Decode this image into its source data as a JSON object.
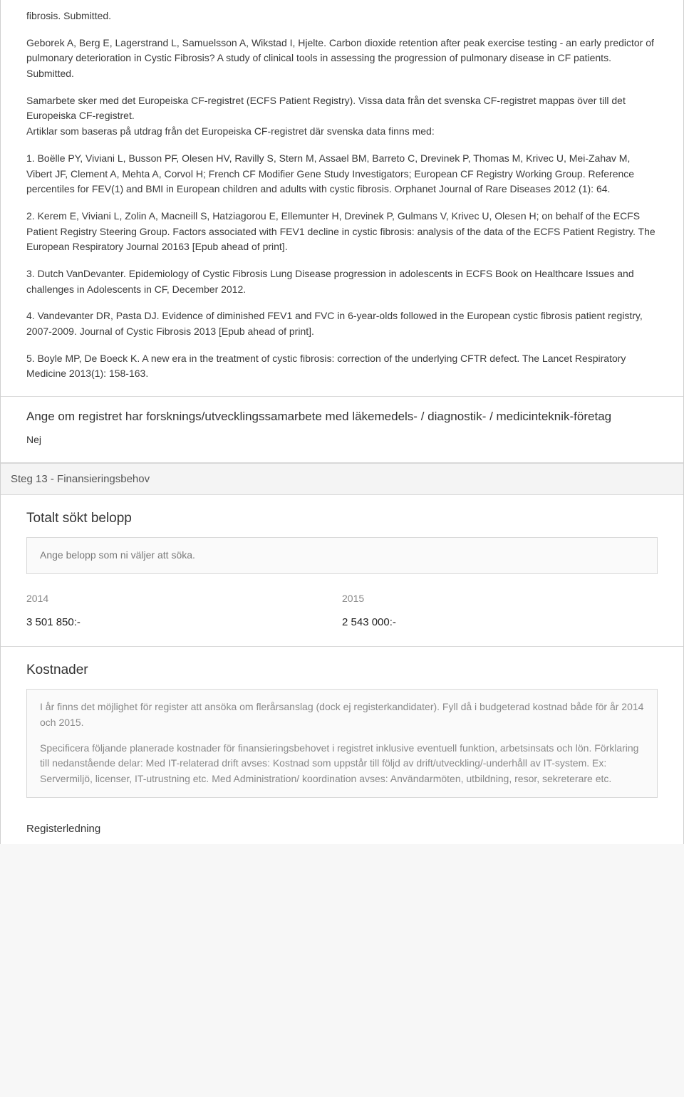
{
  "colors": {
    "background": "#f7f7f7",
    "card": "#ffffff",
    "border": "#d8d8d8",
    "text": "#333333",
    "muted": "#888888",
    "infobox_bg": "#fafafa"
  },
  "typography": {
    "body_pt": 14,
    "heading_pt": 19,
    "subheading_pt": 17,
    "step_pt": 15,
    "family": "Arial"
  },
  "top_text": {
    "line0": "fibrosis. Submitted.",
    "para1": "Geborek A, Berg E, Lagerstrand L, Samuelsson A, Wikstad I, Hjelte. Carbon dioxide retention after peak exercise testing - an early predictor of pulmonary deterioration in Cystic Fibrosis? A study of clinical tools in assessing the progression of pulmonary disease in CF patients. Submitted.",
    "para2": "Samarbete sker med det Europeiska CF-registret (ECFS Patient Registry). Vissa data från det svenska CF-registret mappas över till det Europeiska CF-registret.\nArtiklar som baseras på utdrag från det Europeiska CF-registret där svenska data finns med:",
    "item1": "1. Boëlle PY, Viviani L, Busson PF, Olesen HV, Ravilly S, Stern M, Assael BM, Barreto C, Drevinek P, Thomas M, Krivec U, Mei-Zahav M, Vibert JF, Clement A, Mehta A, Corvol H; French CF Modifier Gene Study Investigators; European CF Registry Working Group. Reference percentiles for FEV(1) and BMI in European children and adults with cystic fibrosis. Orphanet Journal of Rare Diseases 2012 (1): 64.",
    "item2": "2. Kerem E, Viviani L, Zolin A, Macneill S, Hatziagorou E, Ellemunter H, Drevinek P, Gulmans V, Krivec U, Olesen H; on behalf of the ECFS Patient Registry Steering Group. Factors associated with FEV1 decline in cystic fibrosis: analysis of the data of the ECFS Patient Registry. The European Respiratory Journal 20163 [Epub ahead of print].",
    "item3": "3. Dutch VanDevanter. Epidemiology of Cystic Fibrosis Lung Disease progression in adolescents in ECFS Book on Healthcare Issues and challenges in Adolescents in CF, December 2012.",
    "item4": "4. Vandevanter DR, Pasta DJ. Evidence of diminished FEV1 and FVC in 6-year-olds followed in the European cystic fibrosis patient registry, 2007-2009. Journal of Cystic Fibrosis 2013 [Epub ahead of print].",
    "item5": "5. Boyle MP, De Boeck K. A new era in the treatment of cystic fibrosis: correction of the underlying CFTR defect. The Lancet Respiratory Medicine 2013(1): 158-163."
  },
  "question2": {
    "heading": "Ange om registret har forsknings/utvecklingssamarbete med läkemedels- / diagnostik- / medicinteknik-företag",
    "answer": "Nej"
  },
  "step13": {
    "title": "Steg 13 - Finansieringsbehov"
  },
  "totalt": {
    "heading": "Totalt sökt belopp",
    "info": "Ange belopp som ni väljer att söka.",
    "years": [
      {
        "label": "2014",
        "value": "3 501 850:-"
      },
      {
        "label": "2015",
        "value": "2 543 000:-"
      }
    ]
  },
  "kostnader": {
    "heading": "Kostnader",
    "info_p1": "I år finns det möjlighet för register att ansöka om flerårsanslag (dock ej registerkandidater). Fyll då i budgeterad kostnad både för år 2014 och 2015.",
    "info_p2": "Specificera följande planerade kostnader för finansieringsbehovet i registret inklusive eventuell funktion, arbetsinsats och lön. Förklaring till nedanstående delar: Med IT-relaterad drift avses: Kostnad som uppstår till följd av drift/utveckling/-underhåll av IT-system. Ex: Servermiljö, licenser, IT-utrustning etc. Med Administration/ koordination avses: Användarmöten, utbildning, resor, sekreterare etc.",
    "sub": "Registerledning"
  }
}
